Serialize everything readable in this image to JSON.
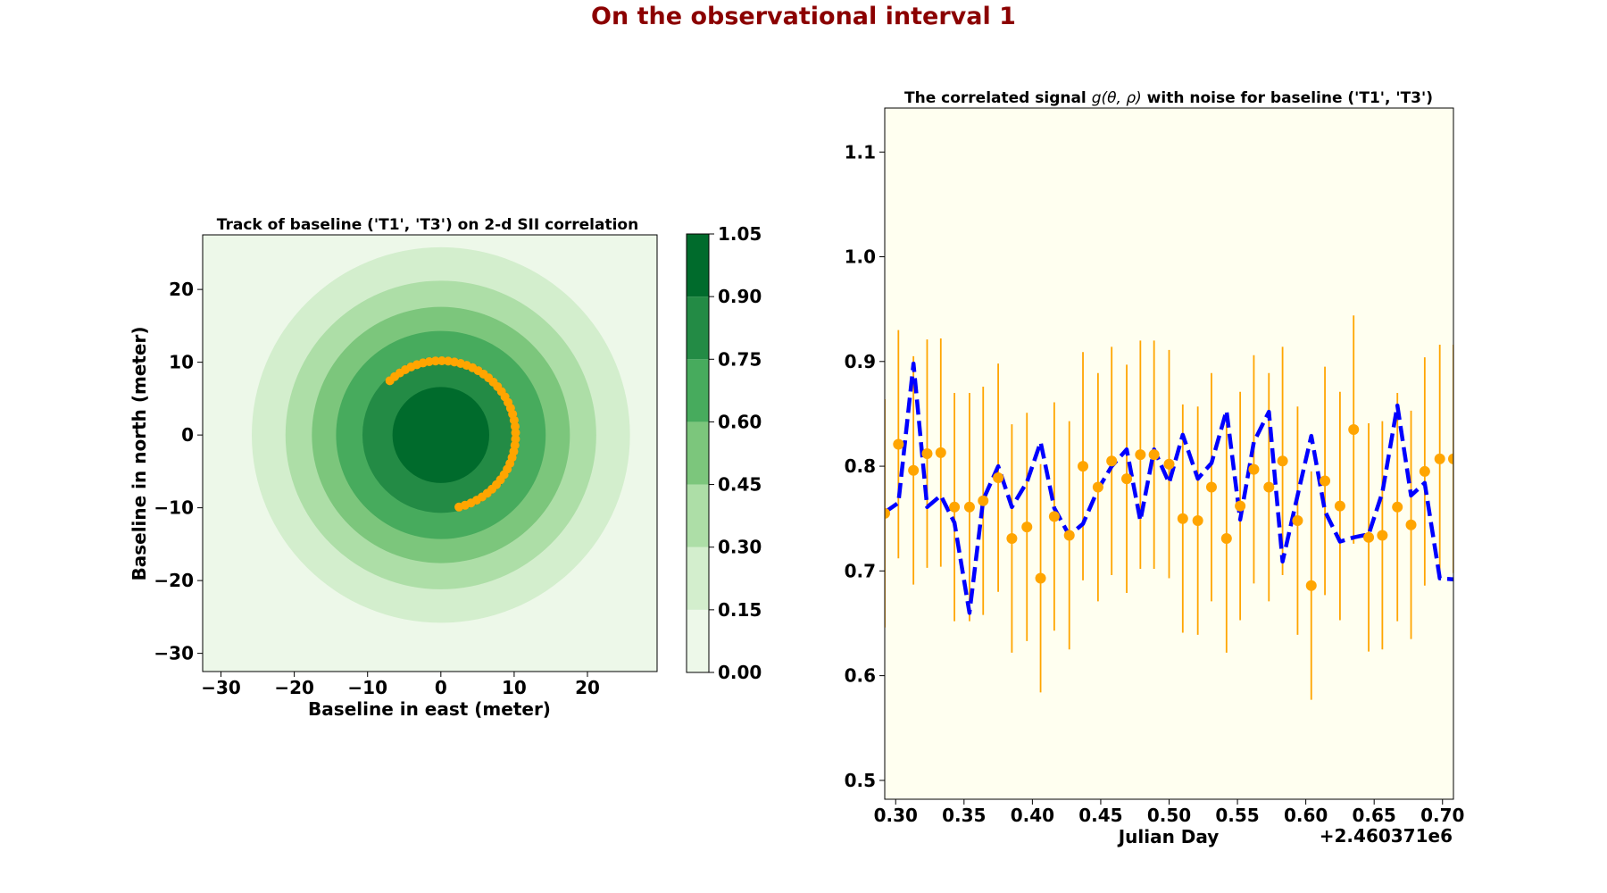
{
  "figure": {
    "suptitle": "On the observational interval 1",
    "suptitle_color": "#8b0000"
  },
  "chart_data": [
    {
      "type": "contour",
      "title": "Track of baseline ('T1', 'T3') on 2-d SII correlation",
      "xlabel": "Baseline in east (meter)",
      "ylabel": "Baseline in north (meter)",
      "xlim": [
        -32.5,
        29.5
      ],
      "ylim": [
        -32.5,
        27.5
      ],
      "xticks": [
        -30,
        -20,
        -10,
        0,
        10,
        20
      ],
      "yticks": [
        -30,
        -20,
        -10,
        0,
        10,
        20
      ],
      "colorbar": {
        "levels": [
          0.0,
          0.15,
          0.3,
          0.45,
          0.6,
          0.75,
          0.9,
          1.05
        ],
        "tick_labels": [
          "0.00",
          "0.15",
          "0.30",
          "0.45",
          "0.60",
          "0.75",
          "0.90",
          "1.05"
        ],
        "colors": [
          "#edf8e9",
          "#d3eecd",
          "#addea7",
          "#7cc67c",
          "#47ab5d",
          "#238b45",
          "#006b2c"
        ]
      },
      "contour_radii_m": [
        25.8,
        21.2,
        17.6,
        14.3,
        10.7,
        6.6
      ],
      "track": {
        "color": "#ffa500",
        "radius_m": 10.2,
        "start_angle_deg": -76,
        "end_angle_deg": 133
      }
    },
    {
      "type": "errorbar-line",
      "title_prefix": "The correlated signal ",
      "title_math": "g(θ, ρ)",
      "title_suffix": " with noise for baseline ('T1', 'T3')",
      "xlabel": "Julian Day",
      "offset_label": "+2.460371e6",
      "xlim": [
        0.292,
        0.708
      ],
      "ylim": [
        0.482,
        1.142
      ],
      "xticks": [
        0.3,
        0.35,
        0.4,
        0.45,
        0.5,
        0.55,
        0.6,
        0.65,
        0.7
      ],
      "xtick_labels": [
        "0.30",
        "0.35",
        "0.40",
        "0.45",
        "0.50",
        "0.55",
        "0.60",
        "0.65",
        "0.70"
      ],
      "yticks": [
        0.5,
        0.6,
        0.7,
        0.8,
        0.9,
        1.0,
        1.1
      ],
      "ytick_labels": [
        "0.5",
        "0.6",
        "0.7",
        "0.8",
        "0.9",
        "1.0",
        "1.1"
      ],
      "background": "#fffff0",
      "line_color": "#0000ff",
      "point_color": "#ffa500",
      "model_line": {
        "x": [
          0.292,
          0.302,
          0.313,
          0.323,
          0.333,
          0.343,
          0.354,
          0.364,
          0.375,
          0.385,
          0.396,
          0.406,
          0.416,
          0.427,
          0.437,
          0.448,
          0.458,
          0.469,
          0.479,
          0.489,
          0.5,
          0.51,
          0.521,
          0.531,
          0.542,
          0.552,
          0.562,
          0.573,
          0.583,
          0.594,
          0.604,
          0.614,
          0.625,
          0.635,
          0.646,
          0.656,
          0.667,
          0.677,
          0.687,
          0.698,
          0.708
        ],
        "y": [
          0.756,
          0.765,
          0.898,
          0.761,
          0.772,
          0.746,
          0.66,
          0.768,
          0.8,
          0.761,
          0.785,
          0.823,
          0.76,
          0.734,
          0.745,
          0.778,
          0.8,
          0.816,
          0.748,
          0.816,
          0.784,
          0.83,
          0.788,
          0.803,
          0.853,
          0.749,
          0.823,
          0.852,
          0.709,
          0.772,
          0.829,
          0.757,
          0.728,
          0.732,
          0.735,
          0.775,
          0.858,
          0.772,
          0.784,
          0.693,
          0.692
        ]
      },
      "points": {
        "x": [
          0.292,
          0.302,
          0.313,
          0.323,
          0.333,
          0.343,
          0.354,
          0.364,
          0.375,
          0.385,
          0.396,
          0.406,
          0.416,
          0.427,
          0.437,
          0.448,
          0.458,
          0.469,
          0.479,
          0.489,
          0.5,
          0.51,
          0.521,
          0.531,
          0.542,
          0.552,
          0.562,
          0.573,
          0.583,
          0.594,
          0.604,
          0.614,
          0.625,
          0.635,
          0.646,
          0.656,
          0.667,
          0.677,
          0.687,
          0.698,
          0.708
        ],
        "y": [
          0.755,
          0.821,
          0.796,
          0.812,
          0.813,
          0.761,
          0.761,
          0.767,
          0.789,
          0.731,
          0.742,
          0.693,
          0.752,
          0.734,
          0.8,
          0.78,
          0.805,
          0.788,
          0.811,
          0.811,
          0.802,
          0.75,
          0.748,
          0.78,
          0.731,
          0.762,
          0.797,
          0.78,
          0.805,
          0.748,
          0.686,
          0.786,
          0.762,
          0.835,
          0.732,
          0.734,
          0.761,
          0.744,
          0.795,
          0.807,
          0.807
        ],
        "err": 0.109
      }
    }
  ]
}
